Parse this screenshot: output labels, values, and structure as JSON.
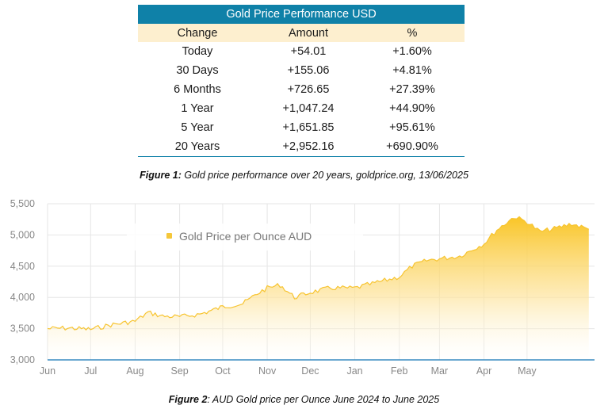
{
  "table": {
    "title": "Gold Price Performance USD",
    "headers": [
      "Change",
      "Amount",
      "%"
    ],
    "rows": [
      [
        "Today",
        "+54.01",
        "+1.60%"
      ],
      [
        "30 Days",
        "+155.06",
        "+4.81%"
      ],
      [
        "6 Months",
        "+726.65",
        "+27.39%"
      ],
      [
        "1 Year",
        "+1,047.24",
        "+44.90%"
      ],
      [
        "5 Year",
        "+1,651.85",
        "+95.61%"
      ],
      [
        "20 Years",
        "+2,952.16",
        "+690.90%"
      ]
    ]
  },
  "caption1": {
    "label": "Figure 1:",
    "text": " Gold price performance over 20 years, goldprice.org, 13/06/2025"
  },
  "caption2": {
    "label": "Figure 2",
    "text": ": AUD Gold price per Ounce June 2024 to June 2025"
  },
  "chart_data": {
    "type": "area",
    "title": "",
    "xlabel": "",
    "ylabel": "",
    "series": [
      {
        "name": "Gold Price per Ounce AUD",
        "x": [
          "2024-06-01",
          "2024-06-15",
          "2024-07-01",
          "2024-07-15",
          "2024-08-01",
          "2024-08-10",
          "2024-08-20",
          "2024-09-01",
          "2024-09-15",
          "2024-10-01",
          "2024-10-15",
          "2024-10-25",
          "2024-11-01",
          "2024-11-10",
          "2024-11-20",
          "2024-12-01",
          "2024-12-15",
          "2025-01-01",
          "2025-01-15",
          "2025-02-01",
          "2025-02-10",
          "2025-02-20",
          "2025-03-01",
          "2025-03-15",
          "2025-04-01",
          "2025-04-10",
          "2025-04-22",
          "2025-05-01",
          "2025-05-10",
          "2025-05-20",
          "2025-06-01",
          "2025-06-13"
        ],
        "values": [
          3500,
          3510,
          3490,
          3560,
          3620,
          3760,
          3700,
          3690,
          3730,
          3850,
          3900,
          4060,
          4150,
          4200,
          4000,
          4080,
          4150,
          4150,
          4230,
          4330,
          4500,
          4590,
          4620,
          4660,
          4860,
          5080,
          5290,
          5210,
          5050,
          5100,
          5180,
          5090
        ]
      }
    ],
    "x_ticks": [
      "Jun",
      "Jul",
      "Aug",
      "Sep",
      "Oct",
      "Nov",
      "Dec",
      "Jan",
      "Feb",
      "Mar",
      "Apr",
      "May"
    ],
    "y_ticks": [
      "3,000",
      "3,500",
      "4,000",
      "4,500",
      "5,000",
      "5,500"
    ],
    "ylim": [
      3000,
      5500
    ],
    "grid": true,
    "legend": "top-left",
    "colors": {
      "area_top": "#f9c21a",
      "area_bottom": "#ffffff",
      "line": "#f7c430",
      "grid": "#e6e6e6",
      "axis": "#3a8cc0"
    }
  }
}
